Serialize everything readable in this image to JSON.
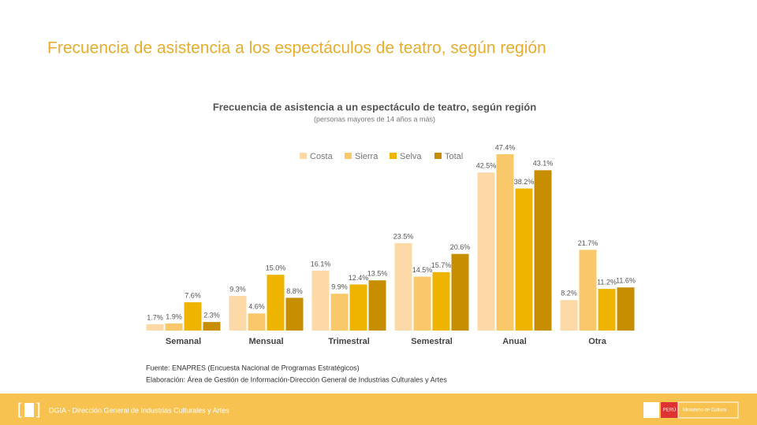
{
  "slide_title": "Frecuencia de asistencia a los espectáculos de teatro, según región",
  "chart_data": {
    "type": "bar",
    "title": "Frecuencia de asistencia a un espectáculo de teatro, según región",
    "subtitle": "(personas mayores de 14 años a más)",
    "categories": [
      "Semanal",
      "Mensual",
      "Trimestral",
      "Semestral",
      "Anual",
      "Otra"
    ],
    "series": [
      {
        "name": "Costa",
        "color": "#fcd9a6",
        "values": [
          1.7,
          9.3,
          16.1,
          23.5,
          42.5,
          8.2
        ],
        "value_labels": [
          "1.7%",
          "9.3%",
          "16.1%",
          "23.5%",
          "42.5%",
          "8.2%"
        ]
      },
      {
        "name": "Sierra",
        "color": "#f9c86b",
        "values": [
          1.9,
          4.6,
          9.9,
          14.5,
          47.4,
          21.7
        ],
        "value_labels": [
          "1.9%",
          "4.6%",
          "9.9%",
          "14.5%",
          "47.4%",
          "21.7%"
        ]
      },
      {
        "name": "Selva",
        "color": "#efb400",
        "values": [
          7.6,
          15.0,
          12.4,
          15.7,
          38.2,
          11.2
        ],
        "value_labels": [
          "7.6%",
          "15.0%",
          "12.4%",
          "15.7%",
          "38.2%",
          "11.2%"
        ]
      },
      {
        "name": "Total",
        "color": "#c68e00",
        "values": [
          2.3,
          8.8,
          13.5,
          20.6,
          43.1,
          11.6
        ],
        "value_labels": [
          "2.3%",
          "8.8%",
          "13.5%",
          "20.6%",
          "43.1%",
          "11.6%"
        ]
      }
    ],
    "legend": "top-right"
  },
  "source": [
    "Fuente: ENAPRES (Encuesta Nacional de Programas Estratégicos)",
    "Elaboración: Área de Gestión de Información-Dirección General de Industrias Culturales y Artes"
  ],
  "footer": {
    "text": "DGIA - Dirección General de Industrias Culturales y Artes",
    "logo_country": "PERÚ",
    "logo_ministry": "Ministerio de Cultura"
  }
}
